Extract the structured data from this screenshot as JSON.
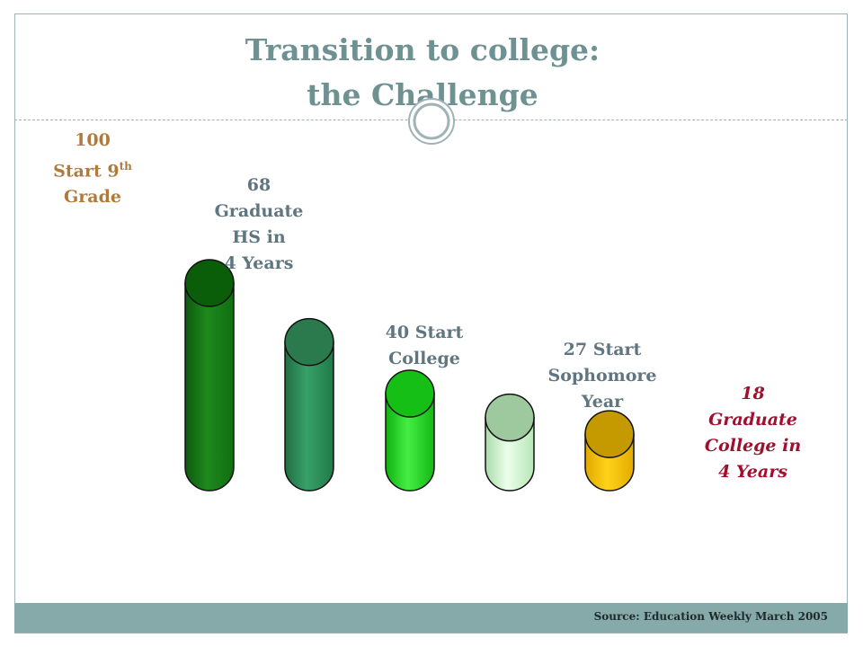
{
  "slide": {
    "title_line1": "Transition to college:",
    "title_line2": "the Challenge",
    "source": "Source: Education Weekly March 2005"
  },
  "chart_data": {
    "type": "bar",
    "categories": [
      "Start 9th Grade",
      "Graduate HS in 4 Years",
      "Start College",
      "Start Sophomore Year",
      "Graduate College in 4 Years"
    ],
    "values": [
      100,
      68,
      40,
      27,
      18
    ],
    "labels": {
      "start9": {
        "value": "100",
        "line2": "Start 9",
        "sup": "th",
        "line3": "Grade"
      },
      "gradhs": {
        "value": "68",
        "line2": "Graduate",
        "line3": "HS in",
        "line4": "4 Years"
      },
      "college": {
        "line1": "40 Start",
        "line2": "College"
      },
      "soph": {
        "line1": "27 Start",
        "line2": "Sophomore",
        "line3": "Year"
      },
      "gradcollege": {
        "value": "18",
        "line2": "Graduate",
        "line3": "College in",
        "line4": "4 Years"
      }
    },
    "colors": {
      "label_brown": "#b07a3c",
      "label_slate": "#5f7680",
      "label_crimson": "#a0102e",
      "title": "#6e9192",
      "bar_palette": [
        "#1f7d1f",
        "#2e8b57",
        "#22cc22",
        "#c8f0c8",
        "#f5c400"
      ]
    }
  }
}
